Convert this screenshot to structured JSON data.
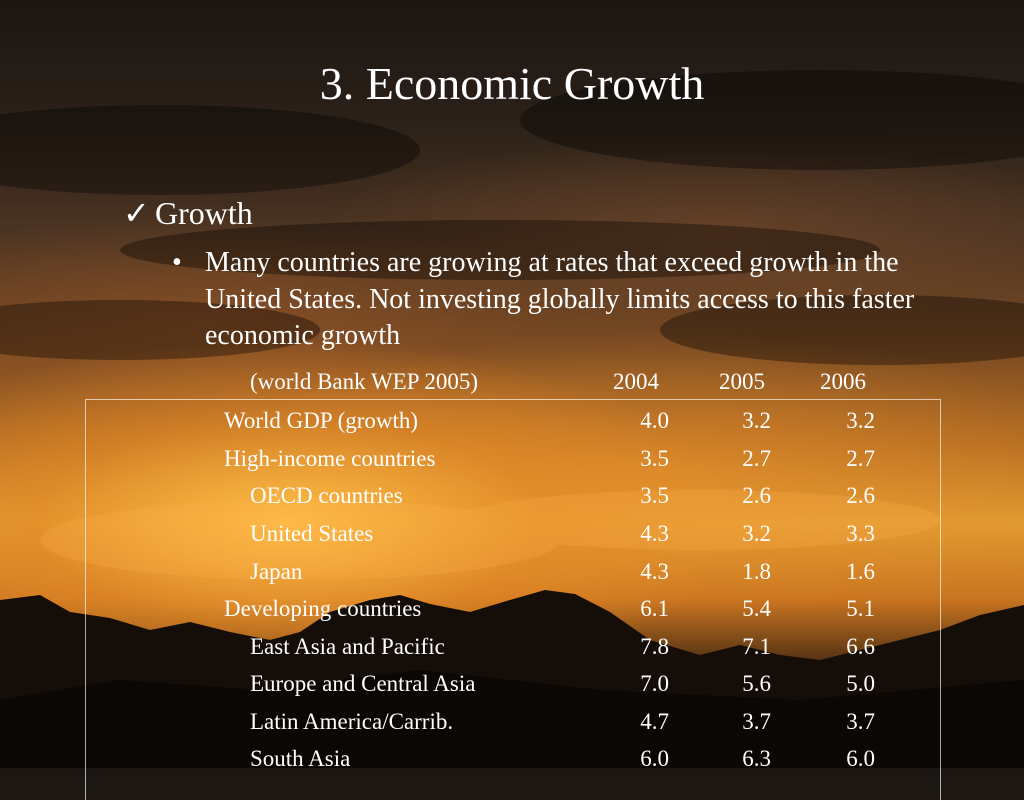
{
  "slide": {
    "title": "3. Economic Growth",
    "heading_mark": "✓",
    "heading": "Growth",
    "bullet_mark": "•",
    "bullet": "Many countries are growing at rates that exceed growth in the United States.  Not investing globally limits access to this faster economic growth"
  },
  "table": {
    "source": "(world Bank WEP 2005)",
    "years": [
      "2004",
      "2005",
      "2006"
    ],
    "rows": [
      {
        "label": "World GDP (growth)",
        "indent": false,
        "v2004": "4.0",
        "v2005": "3.2",
        "v2006": "3.2"
      },
      {
        "label": "High-income countries",
        "indent": false,
        "v2004": "3.5",
        "v2005": "2.7",
        "v2006": "2.7"
      },
      {
        "label": "OECD countries",
        "indent": true,
        "v2004": "3.5",
        "v2005": "2.6",
        "v2006": "2.6"
      },
      {
        "label": "United States",
        "indent": true,
        "v2004": "4.3",
        "v2005": "3.2",
        "v2006": "3.3"
      },
      {
        "label": "Japan",
        "indent": true,
        "v2004": "4.3",
        "v2005": "1.8",
        "v2006": "1.6"
      },
      {
        "label": "Developing countries",
        "indent": false,
        "v2004": "6.1",
        "v2005": "5.4",
        "v2006": "5.1"
      },
      {
        "label": "East Asia and Pacific",
        "indent": true,
        "v2004": "7.8",
        "v2005": "7.1",
        "v2006": "6.6"
      },
      {
        "label": "Europe and Central Asia",
        "indent": true,
        "v2004": "7.0",
        "v2005": "5.6",
        "v2006": "5.0"
      },
      {
        "label": "Latin America/Carrib.",
        "indent": true,
        "v2004": "4.7",
        "v2005": "3.7",
        "v2006": "3.7"
      },
      {
        "label": "South Asia",
        "indent": true,
        "v2004": "6.0",
        "v2005": "6.3",
        "v2006": "6.0"
      }
    ]
  }
}
